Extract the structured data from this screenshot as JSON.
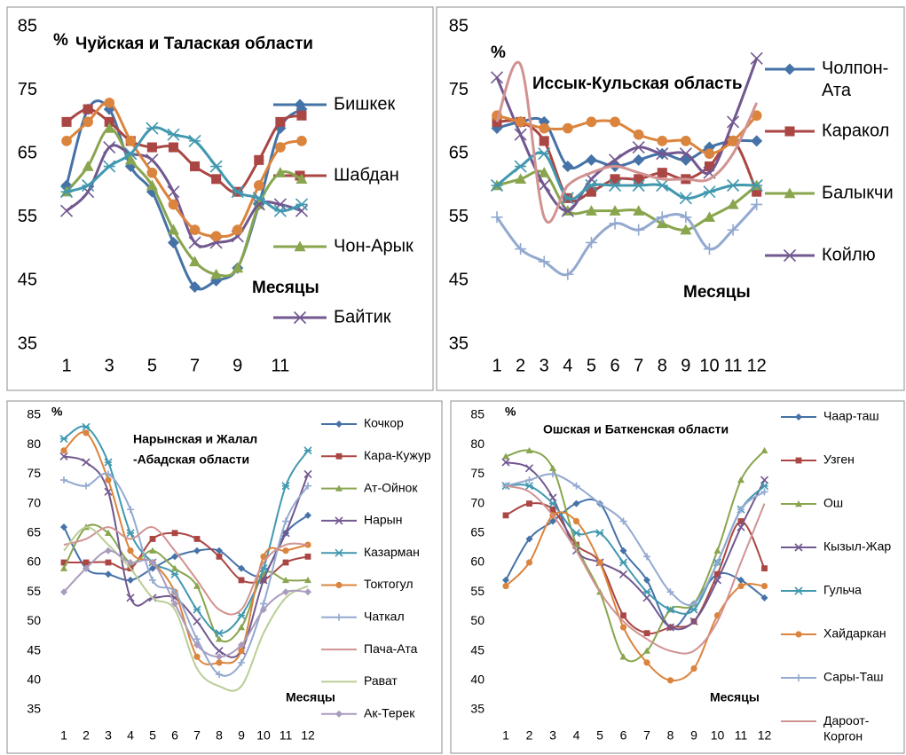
{
  "chart_data": [
    {
      "type": "line",
      "title": "Чуйская и Талаская области",
      "y_label": "%",
      "x_label": "Месяцы",
      "x": [
        1,
        2,
        3,
        4,
        5,
        6,
        7,
        8,
        9,
        10,
        11,
        12
      ],
      "xlim": [
        0.5,
        12.5
      ],
      "xticks": [
        1,
        3,
        5,
        7,
        9,
        11
      ],
      "ylim": [
        35,
        85
      ],
      "yticks": [
        35,
        45,
        55,
        65,
        75,
        85
      ],
      "legend": "right",
      "smooth": true,
      "series": [
        {
          "name": "Бишкек",
          "color": "#4572a7",
          "marker": "diamond",
          "values": [
            60,
            72,
            72,
            63,
            59,
            51,
            44,
            45,
            47,
            57,
            69,
            72
          ]
        },
        {
          "name": "Шабдан",
          "color": "#aa4643",
          "marker": "square",
          "values": [
            70,
            72,
            70,
            67,
            66,
            66,
            63,
            61,
            59,
            64,
            70,
            71
          ]
        },
        {
          "name": "Чон-Арык",
          "color": "#89a54e",
          "marker": "triangle",
          "values": [
            59,
            63,
            69,
            64,
            60,
            53,
            48,
            46,
            47,
            57,
            62,
            61
          ]
        },
        {
          "name": "Байтик",
          "color": "#71588f",
          "marker": "x",
          "values": [
            56,
            59,
            66,
            65,
            64,
            59,
            51,
            51,
            52,
            57,
            57,
            56
          ]
        },
        {
          "color": "#db843d",
          "marker": "circle",
          "values": [
            67,
            70,
            73,
            67,
            62,
            57,
            53,
            52,
            53,
            60,
            66,
            67
          ]
        },
        {
          "color": "#4198af",
          "marker": "star",
          "values": [
            59,
            60,
            63,
            65,
            69,
            68,
            67,
            63,
            59,
            58,
            56,
            57
          ]
        }
      ]
    },
    {
      "type": "line",
      "title": "Иссык-Кульская область",
      "y_label": "%",
      "x_label": "Месяцы",
      "x": [
        1,
        2,
        3,
        4,
        5,
        6,
        7,
        8,
        9,
        10,
        11,
        12
      ],
      "xlim": [
        0.5,
        12.5
      ],
      "xticks": [
        1,
        2,
        3,
        4,
        5,
        6,
        7,
        8,
        9,
        10,
        11,
        12
      ],
      "ylim": [
        35,
        85
      ],
      "yticks": [
        35,
        45,
        55,
        65,
        75,
        85
      ],
      "legend": "right",
      "smooth": true,
      "series": [
        {
          "name": "Чолпон-Ата",
          "color": "#4572a7",
          "marker": "diamond",
          "values": [
            69,
            70,
            70,
            63,
            64,
            63,
            64,
            65,
            64,
            66,
            67,
            67
          ]
        },
        {
          "name": "Каракол",
          "color": "#aa4643",
          "marker": "square",
          "values": [
            70,
            70,
            67,
            58,
            59,
            61,
            61,
            62,
            61,
            63,
            67,
            59
          ]
        },
        {
          "name": "Балыкчи",
          "color": "#89a54e",
          "marker": "triangle",
          "values": [
            60,
            61,
            62,
            56,
            56,
            56,
            56,
            54,
            53,
            55,
            57,
            60
          ]
        },
        {
          "name": "Койлю",
          "color": "#71588f",
          "marker": "x",
          "values": [
            77,
            68,
            60,
            56,
            61,
            64,
            66,
            65,
            65,
            62,
            70,
            80
          ]
        },
        {
          "color": "#db843d",
          "marker": "circle",
          "values": [
            71,
            70,
            69,
            69,
            70,
            70,
            68,
            67,
            67,
            65,
            67,
            71
          ]
        },
        {
          "color": "#4198af",
          "marker": "star",
          "values": [
            60,
            63,
            65,
            58,
            60,
            60,
            60,
            60,
            58,
            59,
            60,
            60
          ]
        },
        {
          "color": "#93a9cf",
          "marker": "plus",
          "values": [
            55,
            50,
            48,
            46,
            51,
            54,
            53,
            55,
            55,
            50,
            53,
            57
          ]
        },
        {
          "color": "#d19392",
          "marker": "none",
          "values": [
            70,
            79,
            55,
            60,
            62,
            63,
            62,
            61,
            61,
            61,
            65,
            73
          ]
        }
      ]
    },
    {
      "type": "line",
      "title": [
        "Нарынская и Жалал",
        "-Абадская области"
      ],
      "y_label": "%",
      "x_label": "Месяцы",
      "x": [
        1,
        2,
        3,
        4,
        5,
        6,
        7,
        8,
        9,
        10,
        11,
        12
      ],
      "xlim": [
        0.5,
        12.5
      ],
      "xticks": [
        1,
        2,
        3,
        4,
        5,
        6,
        7,
        8,
        9,
        10,
        11,
        12
      ],
      "ylim": [
        35,
        85
      ],
      "yticks": [
        35,
        40,
        45,
        50,
        55,
        60,
        65,
        70,
        75,
        80,
        85
      ],
      "legend": "right",
      "smooth": true,
      "series": [
        {
          "name": "Кочкор",
          "color": "#4572a7",
          "marker": "diamond",
          "values": [
            66,
            59,
            58,
            57,
            59,
            61,
            62,
            62,
            59,
            58,
            65,
            68
          ]
        },
        {
          "name": "Кара-Кужур",
          "color": "#aa4643",
          "marker": "square",
          "values": [
            60,
            60,
            60,
            59,
            64,
            65,
            64,
            61,
            57,
            57,
            60,
            61
          ]
        },
        {
          "name": "Ат-Ойнок",
          "color": "#89a54e",
          "marker": "triangle",
          "values": [
            59,
            66,
            65,
            60,
            62,
            59,
            56,
            47,
            49,
            58,
            57,
            57
          ]
        },
        {
          "name": "Нарын",
          "color": "#71588f",
          "marker": "x",
          "values": [
            78,
            77,
            72,
            54,
            54,
            54,
            50,
            45,
            45,
            57,
            65,
            75
          ]
        },
        {
          "name": "Казарман",
          "color": "#4198af",
          "marker": "star",
          "values": [
            81,
            83,
            77,
            65,
            60,
            58,
            52,
            48,
            51,
            59,
            73,
            79
          ]
        },
        {
          "name": "Токтогул",
          "color": "#db843d",
          "marker": "circle",
          "values": [
            79,
            82,
            74,
            62,
            60,
            55,
            44,
            43,
            45,
            61,
            62,
            63
          ]
        },
        {
          "name": "Чаткал",
          "color": "#93a9cf",
          "marker": "plus",
          "values": [
            74,
            73,
            75,
            69,
            57,
            55,
            47,
            41,
            43,
            53,
            67,
            73
          ]
        },
        {
          "name": "Пача-Ата",
          "color": "#d19392",
          "marker": "none",
          "values": [
            63,
            64,
            66,
            64,
            66,
            62,
            57,
            52,
            52,
            60,
            63,
            63
          ]
        },
        {
          "name": "Рават",
          "color": "#b9cd96",
          "marker": "none",
          "values": [
            62,
            66,
            63,
            59,
            54,
            52,
            42,
            39,
            39,
            48,
            54,
            56
          ]
        },
        {
          "name": "Ак-Терек",
          "color": "#a99bbd",
          "marker": "diamond",
          "values": [
            55,
            59,
            62,
            60,
            60,
            53,
            46,
            44,
            46,
            52,
            55,
            55
          ]
        }
      ]
    },
    {
      "type": "line",
      "title": "Ошская и Баткенская области",
      "y_label": "%",
      "x_label": "Месяцы",
      "x": [
        1,
        2,
        3,
        4,
        5,
        6,
        7,
        8,
        9,
        10,
        11,
        12
      ],
      "xlim": [
        0.5,
        12.5
      ],
      "xticks": [
        1,
        2,
        3,
        4,
        5,
        6,
        7,
        8,
        9,
        10,
        11,
        12
      ],
      "ylim": [
        35,
        85
      ],
      "yticks": [
        35,
        40,
        45,
        50,
        55,
        60,
        65,
        70,
        75,
        80,
        85
      ],
      "legend": "right",
      "smooth": true,
      "series": [
        {
          "name": "Чаар-таш",
          "color": "#4572a7",
          "marker": "diamond",
          "values": [
            57,
            64,
            67,
            70,
            70,
            62,
            57,
            49,
            53,
            58,
            57,
            54
          ]
        },
        {
          "name": "Узген",
          "color": "#aa4643",
          "marker": "square",
          "values": [
            68,
            70,
            69,
            63,
            60,
            51,
            48,
            49,
            50,
            58,
            67,
            59
          ]
        },
        {
          "name": "Ош",
          "color": "#89a54e",
          "marker": "triangle",
          "values": [
            78,
            79,
            76,
            63,
            55,
            44,
            45,
            52,
            53,
            62,
            74,
            79
          ]
        },
        {
          "name": "Кызыл-Жар",
          "color": "#71588f",
          "marker": "x",
          "values": [
            77,
            76,
            71,
            62,
            60,
            58,
            54,
            49,
            50,
            57,
            66,
            74
          ]
        },
        {
          "name": "Гульча",
          "color": "#4198af",
          "marker": "star",
          "values": [
            73,
            73,
            70,
            65,
            65,
            60,
            55,
            52,
            52,
            60,
            69,
            73
          ]
        },
        {
          "name": "Хайдаркан",
          "color": "#db843d",
          "marker": "circle",
          "values": [
            56,
            60,
            68,
            67,
            60,
            49,
            43,
            40,
            42,
            51,
            56,
            56
          ]
        },
        {
          "name": "Сары-Таш",
          "color": "#93a9cf",
          "marker": "plus",
          "values": [
            73,
            74,
            75,
            73,
            70,
            67,
            61,
            55,
            53,
            60,
            69,
            72
          ]
        },
        {
          "name": "Дароот-Коргон",
          "color": "#d19392",
          "marker": "none",
          "values": [
            73,
            72,
            68,
            62,
            55,
            50,
            47,
            45,
            45,
            50,
            60,
            70
          ]
        }
      ]
    }
  ]
}
